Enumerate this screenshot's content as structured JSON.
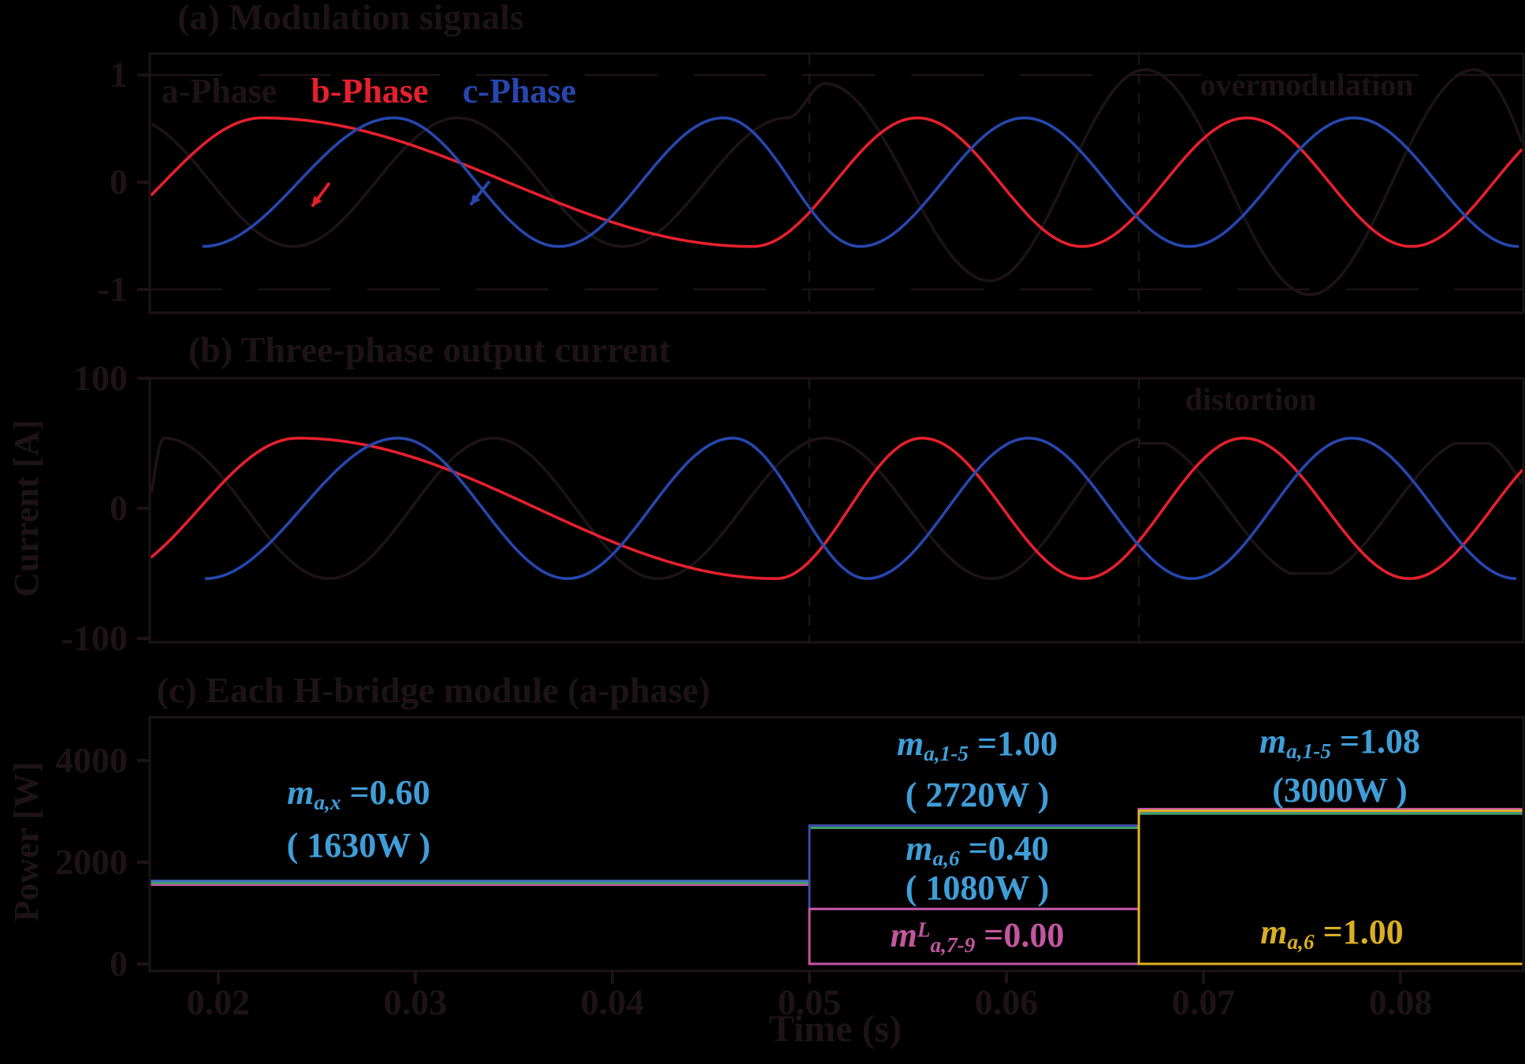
{
  "figure": {
    "background": "#000000",
    "panels": [
      {
        "id": "a",
        "title": "(a) Modulation signals"
      },
      {
        "id": "b",
        "title": "(b) Three-phase output current"
      },
      {
        "id": "c",
        "title": "(c) Each H-bridge module (a-phase)"
      }
    ],
    "labels": {
      "a_phase": "a-Phase",
      "b_phase": "b-Phase",
      "c_phase": "c-Phase",
      "overmodulation": "overmodulation",
      "distortion": "distortion",
      "ylabel_b": "Current [A]",
      "ylabel_c": "Power [W]",
      "xlabel": "Time (s)"
    }
  },
  "colors": {
    "ink": "#1d1317",
    "red": "#e6202e",
    "blue": "#2747ae",
    "light_blue": "#3f9ed8",
    "green": "#42a06b",
    "power_blue": "#4470c0",
    "box_blue": "#3a4da1",
    "magenta": "#c3569f",
    "yellow": "#e2b321",
    "yellow_text": "#d9ae24"
  },
  "chart_data": [
    {
      "type": "line",
      "panel": "a",
      "title": "(a) Modulation signals",
      "ylim": [
        -1.22,
        1.2
      ],
      "xlim": [
        0.01652,
        0.08624
      ],
      "yticks": [
        {
          "v": 1,
          "label": "1"
        },
        {
          "v": 0,
          "label": "0"
        },
        {
          "v": -1,
          "label": "-1"
        }
      ],
      "gridlines_dashed": [
        1,
        -1
      ],
      "transitions": [
        0.05,
        0.06672
      ],
      "series": [
        {
          "name": "a-phase",
          "color_key": "ink",
          "knots": [
            [
              0.01544,
              0.6
            ],
            [
              0.0238,
              -0.6
            ],
            [
              0.03216,
              0.6
            ],
            [
              0.04052,
              -0.6
            ],
            [
              0.04888,
              0.6
            ],
            [
              0.0508,
              0.92
            ],
            [
              0.05916,
              -0.92
            ],
            [
              0.06704,
              1.05
            ],
            [
              0.0754,
              -1.05
            ],
            [
              0.08376,
              1.05
            ],
            [
              0.09,
              -1.05
            ]
          ]
        },
        {
          "name": "b-phase",
          "color_key": "red",
          "knots": [
            [
              0.01224,
              -0.6
            ],
            [
              0.02224,
              0.6
            ],
            [
              0.04712,
              -0.6
            ],
            [
              0.05548,
              0.6
            ],
            [
              0.06384,
              -0.6
            ],
            [
              0.0722,
              0.6
            ],
            [
              0.08056,
              -0.6
            ],
            [
              0.08892,
              0.6
            ]
          ]
        },
        {
          "name": "c-phase",
          "color_key": "blue",
          "knots": [
            [
              0.0192,
              -0.6
            ],
            [
              0.02892,
              0.6
            ],
            [
              0.03728,
              -0.6
            ],
            [
              0.04564,
              0.6
            ],
            [
              0.05256,
              -0.6
            ],
            [
              0.06092,
              0.6
            ],
            [
              0.06928,
              -0.6
            ],
            [
              0.07764,
              0.6
            ],
            [
              0.086,
              -0.6
            ]
          ]
        }
      ]
    },
    {
      "type": "line",
      "panel": "b",
      "title": "(b) Three-phase output current",
      "ylabel": "Current [A]",
      "ylim": [
        -103,
        100
      ],
      "xlim": [
        0.01652,
        0.08624
      ],
      "yticks": [
        {
          "v": 100,
          "label": "100"
        },
        {
          "v": 0,
          "label": "0"
        },
        {
          "v": -100,
          "label": "-100"
        }
      ],
      "transitions": [
        0.05,
        0.06672
      ],
      "series": [
        {
          "name": "a-phase-current",
          "color_key": "ink",
          "clip_after": 0.06672,
          "clip": 50,
          "knots": [
            [
              0.016,
              -30
            ],
            [
              0.01724,
              54
            ],
            [
              0.0256,
              -54
            ],
            [
              0.03396,
              54
            ],
            [
              0.04232,
              -54
            ],
            [
              0.05084,
              54
            ],
            [
              0.05924,
              -54
            ],
            [
              0.06704,
              54
            ],
            [
              0.0754,
              -54
            ],
            [
              0.08376,
              54
            ],
            [
              0.09,
              -54
            ]
          ]
        },
        {
          "name": "b-phase-current",
          "color_key": "red",
          "knots": [
            [
              0.01404,
              -54
            ],
            [
              0.02404,
              54
            ],
            [
              0.04832,
              -54
            ],
            [
              0.05572,
              54
            ],
            [
              0.06392,
              -54
            ],
            [
              0.07204,
              54
            ],
            [
              0.08044,
              -54
            ],
            [
              0.08884,
              54
            ]
          ]
        },
        {
          "name": "c-phase-current",
          "color_key": "blue",
          "knots": [
            [
              0.01932,
              -54
            ],
            [
              0.02912,
              54
            ],
            [
              0.03772,
              -54
            ],
            [
              0.04612,
              54
            ],
            [
              0.05292,
              -54
            ],
            [
              0.06112,
              54
            ],
            [
              0.0694,
              -54
            ],
            [
              0.07752,
              54
            ],
            [
              0.08588,
              -54
            ]
          ]
        }
      ]
    },
    {
      "type": "line",
      "panel": "c",
      "title": "(c) Each H-bridge module (a-phase)",
      "ylabel": "Power [W]",
      "xlabel": "Time (s)",
      "ylim": [
        -140,
        4850
      ],
      "xlim": [
        0.01652,
        0.08624
      ],
      "yticks": [
        {
          "v": 4000,
          "label": "4000"
        },
        {
          "v": 2000,
          "label": "2000"
        },
        {
          "v": 0,
          "label": "0"
        }
      ],
      "xticks": [
        {
          "v": 0.02,
          "label": "0.02"
        },
        {
          "v": 0.03,
          "label": "0.03"
        },
        {
          "v": 0.04,
          "label": "0.04"
        },
        {
          "v": 0.05,
          "label": "0.05"
        },
        {
          "v": 0.06,
          "label": "0.06"
        },
        {
          "v": 0.07,
          "label": "0.07"
        },
        {
          "v": 0.08,
          "label": "0.08"
        }
      ],
      "steps": [
        {
          "name": "modules-7-9-low-voltage",
          "color_key": "magenta",
          "pts": [
            [
              0.01652,
              1555
            ],
            [
              0.05,
              1555
            ],
            [
              0.05,
              0
            ],
            [
              0.06672,
              0
            ],
            [
              0.06672,
              3045
            ],
            [
              0.08624,
              3045
            ]
          ]
        },
        {
          "name": "modules-1-5-under",
          "color_key": "green",
          "pts": [
            [
              0.01652,
              1590
            ],
            [
              0.05,
              1590
            ],
            [
              0.05,
              2675
            ],
            [
              0.06672,
              2675
            ],
            [
              0.06672,
              2955
            ],
            [
              0.08624,
              2955
            ]
          ]
        },
        {
          "name": "modules-1-5",
          "color_key": "power_blue",
          "pts": [
            [
              0.01652,
              1630
            ],
            [
              0.05,
              1630
            ],
            [
              0.05,
              2720
            ],
            [
              0.06672,
              2720
            ],
            [
              0.06672,
              3000
            ],
            [
              0.08624,
              3000
            ]
          ]
        }
      ],
      "boxes": [
        {
          "name": "module-6-box",
          "color_key": "box_blue",
          "t": [
            0.05,
            0.06672
          ],
          "p": [
            1080,
            2720
          ]
        },
        {
          "name": "modules-7-9-box",
          "color_key": "magenta",
          "t": [
            0.05,
            0.06672
          ],
          "p": [
            0,
            1080
          ]
        },
        {
          "name": "module-6-full-box",
          "color_key": "yellow",
          "t": [
            0.06672,
            0.08624
          ],
          "p": [
            0,
            3010
          ]
        }
      ]
    }
  ],
  "annotations": [
    {
      "name": "ann-max",
      "color_key": "light_blue",
      "lines": [
        {
          "parts": [
            {
              "t": "m",
              "i": 1
            },
            {
              "t": "a,x",
              "sub": 1
            },
            {
              "t": " =0.60",
              "b": 1
            }
          ]
        },
        {
          "parts": [
            {
              "t": "( 1630W )",
              "b": 1
            }
          ]
        }
      ]
    },
    {
      "name": "ann-m15-100",
      "color_key": "light_blue",
      "lines": [
        {
          "parts": [
            {
              "t": "m",
              "i": 1
            },
            {
              "t": "a,1-5",
              "sub": 1
            },
            {
              "t": " =1.00",
              "b": 1
            }
          ]
        },
        {
          "parts": [
            {
              "t": "( 2720W )",
              "b": 1
            }
          ]
        }
      ]
    },
    {
      "name": "ann-m6-040",
      "color_key": "light_blue",
      "lines": [
        {
          "parts": [
            {
              "t": "m",
              "i": 1
            },
            {
              "t": "a,6",
              "sub": 1
            },
            {
              "t": " =0.40",
              "b": 1
            }
          ]
        },
        {
          "parts": [
            {
              "t": "( 1080W )",
              "b": 1
            }
          ]
        }
      ]
    },
    {
      "name": "ann-m79-000",
      "color_key": "magenta",
      "lines": [
        {
          "parts": [
            {
              "t": "m",
              "i": 1
            },
            {
              "t": "L",
              "sup": 1
            },
            {
              "t": "a,7-9",
              "sub": 1
            },
            {
              "t": " =0.00",
              "b": 1
            }
          ]
        }
      ]
    },
    {
      "name": "ann-m15-108",
      "color_key": "light_blue",
      "lines": [
        {
          "parts": [
            {
              "t": "m",
              "i": 1
            },
            {
              "t": "a,1-5",
              "sub": 1
            },
            {
              "t": " =1.08",
              "b": 1
            }
          ]
        },
        {
          "parts": [
            {
              "t": "(3000W )",
              "b": 1
            }
          ]
        }
      ]
    },
    {
      "name": "ann-m6-100",
      "color_key": "yellow_text",
      "lines": [
        {
          "parts": [
            {
              "t": "m",
              "i": 1
            },
            {
              "t": "a,6",
              "sub": 1
            },
            {
              "t": " =1.00",
              "b": 1
            }
          ]
        }
      ]
    }
  ]
}
